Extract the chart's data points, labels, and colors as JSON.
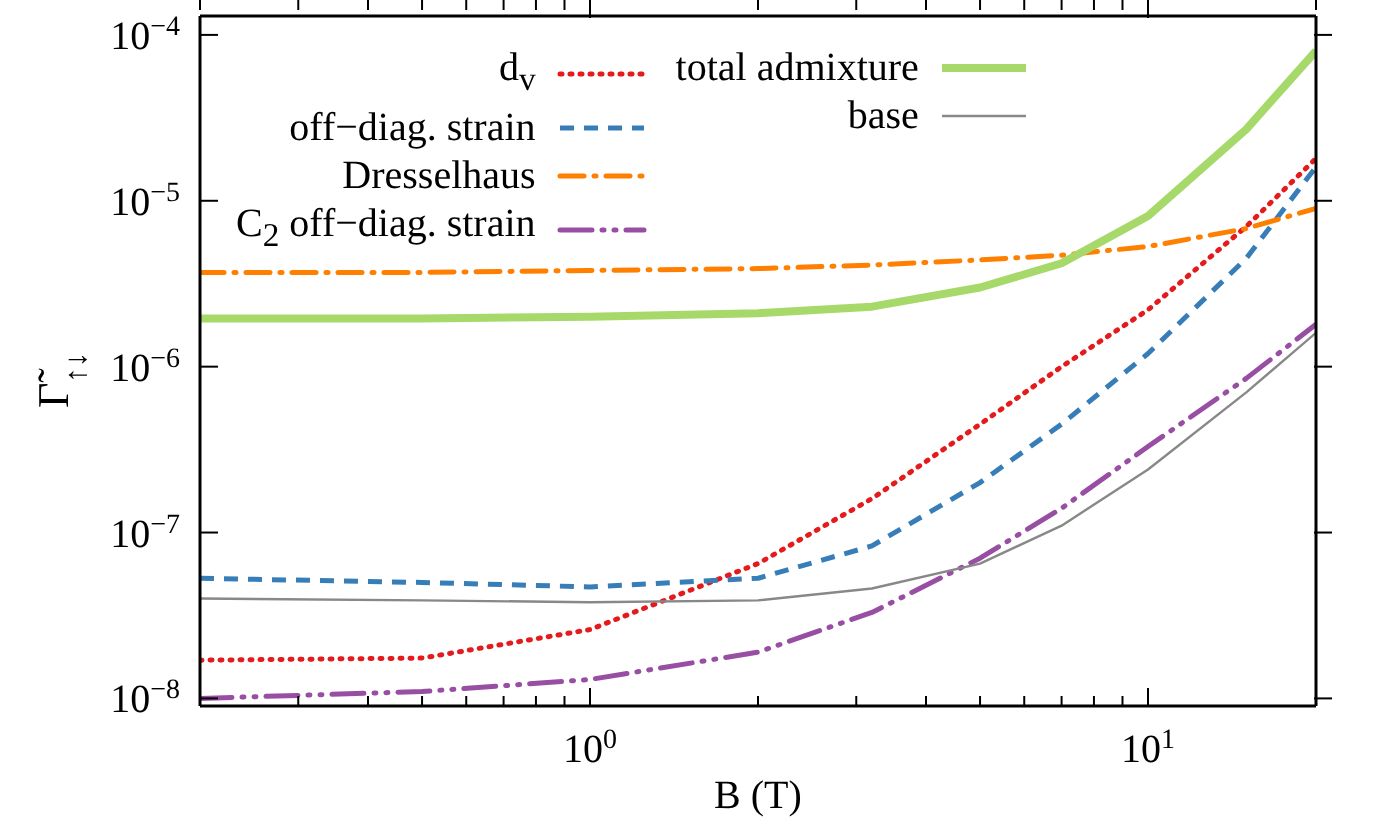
{
  "chart_data": {
    "type": "line",
    "xlabel": "B (T)",
    "ylabel": "Γ̃$_{↑↓}$",
    "log": "xy",
    "legend": "top",
    "marker": "none",
    "xlim": [
      0.2,
      20
    ],
    "ylim": [
      9e-09,
      0.00013
    ],
    "xticks": [
      {
        "value": 0.2,
        "label": null
      },
      {
        "value": 0.3,
        "label": null
      },
      {
        "value": 0.4,
        "label": null
      },
      {
        "value": 0.5,
        "label": null
      },
      {
        "value": 0.6,
        "label": null
      },
      {
        "value": 0.7,
        "label": null
      },
      {
        "value": 0.8,
        "label": null
      },
      {
        "value": 0.9,
        "label": null
      },
      {
        "value": 1,
        "label": "10$^{0}$"
      },
      {
        "value": 2,
        "label": null
      },
      {
        "value": 3,
        "label": null
      },
      {
        "value": 4,
        "label": null
      },
      {
        "value": 5,
        "label": null
      },
      {
        "value": 6,
        "label": null
      },
      {
        "value": 7,
        "label": null
      },
      {
        "value": 8,
        "label": null
      },
      {
        "value": 9,
        "label": null
      },
      {
        "value": 10,
        "label": "10$^{1}$"
      },
      {
        "value": 20,
        "label": null
      }
    ],
    "yticks": [
      {
        "value": 1e-08,
        "label": "10$^{−8}$"
      },
      {
        "value": 1e-07,
        "label": "10$^{−7}$"
      },
      {
        "value": 1e-06,
        "label": "10$^{−6}$"
      },
      {
        "value": 1e-05,
        "label": "10$^{−5}$"
      },
      {
        "value": 0.0001,
        "label": "10$^{−4}$"
      }
    ],
    "x": [
      0.2,
      0.5,
      1,
      2,
      3.2,
      5,
      7,
      10,
      15,
      20
    ],
    "series": [
      {
        "name": "d$_{v}$",
        "color": "#e41a1c",
        "line_style": "dotted",
        "values": [
          1.7e-08,
          1.75e-08,
          2.6e-08,
          6.5e-08,
          1.6e-07,
          4.5e-07,
          1e-06,
          2.2e-06,
          7e-06,
          1.8e-05
        ]
      },
      {
        "name": "off−diag. strain",
        "color": "#377eb8",
        "line_style": "dashed",
        "values": [
          5.3e-08,
          5e-08,
          4.7e-08,
          5.3e-08,
          8.3e-08,
          2e-07,
          4.5e-07,
          1.2e-06,
          4.5e-06,
          1.6e-05
        ]
      },
      {
        "name": "Dresselhaus",
        "color": "#ff7f00",
        "line_style": "dashdot",
        "values": [
          3.7e-06,
          3.7e-06,
          3.8e-06,
          3.9e-06,
          4.1e-06,
          4.4e-06,
          4.7e-06,
          5.3e-06,
          6.8e-06,
          9e-06
        ]
      },
      {
        "name": "C$_{2}$ off−diag. strain",
        "color": "#984ea3",
        "line_style": "dashdotdot",
        "values": [
          1e-08,
          1.1e-08,
          1.3e-08,
          1.9e-08,
          3.3e-08,
          7e-08,
          1.4e-07,
          3.3e-07,
          8.5e-07,
          1.8e-06
        ]
      },
      {
        "name": "total admixture",
        "color": "#a6d96a",
        "line_style": "solid",
        "values": [
          1.95e-06,
          1.95e-06,
          2e-06,
          2.1e-06,
          2.3e-06,
          3e-06,
          4.2e-06,
          8.1e-06,
          2.7e-05,
          8e-05
        ]
      },
      {
        "name": "base",
        "color": "#888888",
        "line_style": "solid",
        "values": [
          4e-08,
          3.9e-08,
          3.8e-08,
          3.9e-08,
          4.6e-08,
          6.5e-08,
          1.1e-07,
          2.4e-07,
          7e-07,
          1.6e-06
        ]
      }
    ]
  }
}
